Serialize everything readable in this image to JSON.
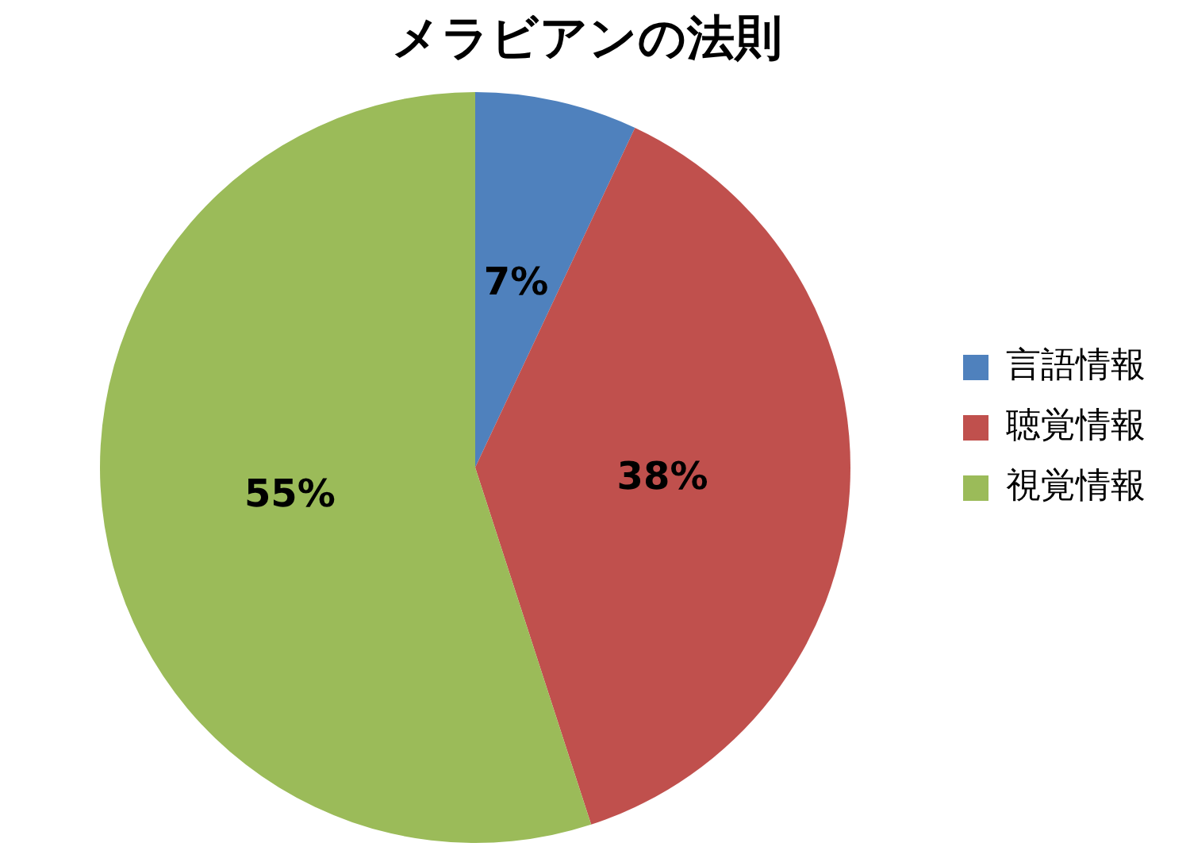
{
  "chart_data": {
    "type": "pie",
    "title": "メラビアンの法則",
    "categories": [
      "言語情報",
      "聴覚情報",
      "視覚情報"
    ],
    "values": [
      7,
      38,
      55
    ],
    "colors": [
      "#4f81bd",
      "#c0504d",
      "#9bbb59"
    ],
    "value_labels": [
      "7%",
      "38%",
      "55%"
    ],
    "legend": "right"
  }
}
